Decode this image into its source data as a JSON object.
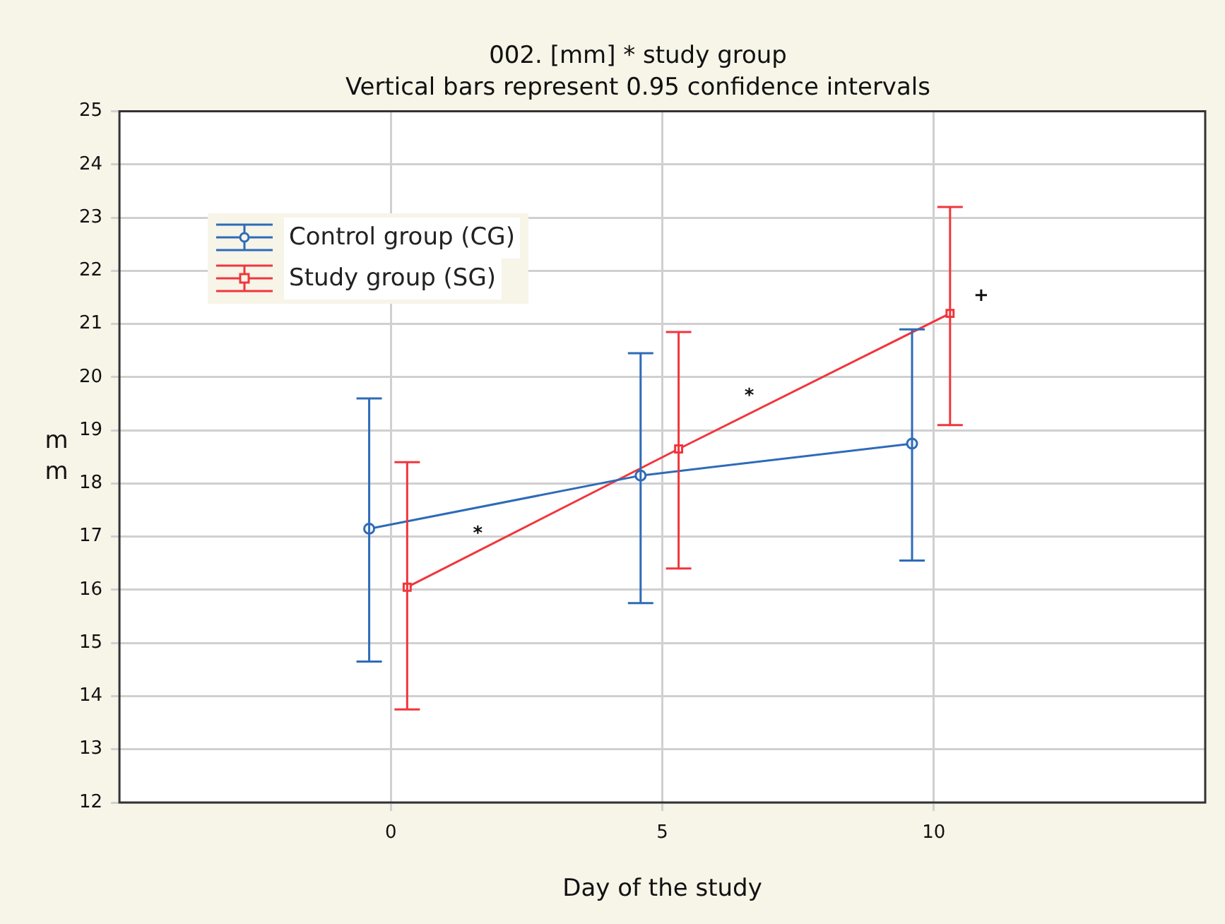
{
  "chart_data": {
    "type": "line",
    "title": "002. [mm] * study group",
    "subtitle": "Vertical bars represent 0.95 confidence intervals",
    "xlabel": "Day of the study",
    "ylabel": "mm",
    "series": [
      {
        "name": "Control group (CG)",
        "color": "#2e6bb8",
        "marker": "circle",
        "x": [
          -0.4,
          4.6,
          9.6
        ],
        "values": [
          17.15,
          18.15,
          18.75
        ],
        "errors": [
          [
            14.65,
            19.6
          ],
          [
            15.75,
            20.45
          ],
          [
            16.55,
            20.9
          ]
        ]
      },
      {
        "name": "Study group (SG)",
        "color": "#f0363c",
        "marker": "square",
        "x": [
          0.3,
          5.3,
          10.3
        ],
        "values": [
          16.05,
          18.65,
          21.2
        ],
        "errors": [
          [
            13.75,
            18.4
          ],
          [
            16.4,
            20.85
          ],
          [
            19.1,
            23.2
          ]
        ]
      }
    ],
    "annotations": [
      "*",
      "*",
      "+"
    ],
    "xlim": [
      -5,
      15
    ],
    "xticks": [
      0,
      5,
      10
    ],
    "ylim": [
      12,
      25
    ],
    "yticks": [
      12,
      13,
      14,
      15,
      16,
      17,
      18,
      19,
      20,
      21,
      22,
      23,
      24,
      25
    ],
    "grid": true,
    "legend": "top left",
    "line_style": "solid"
  }
}
